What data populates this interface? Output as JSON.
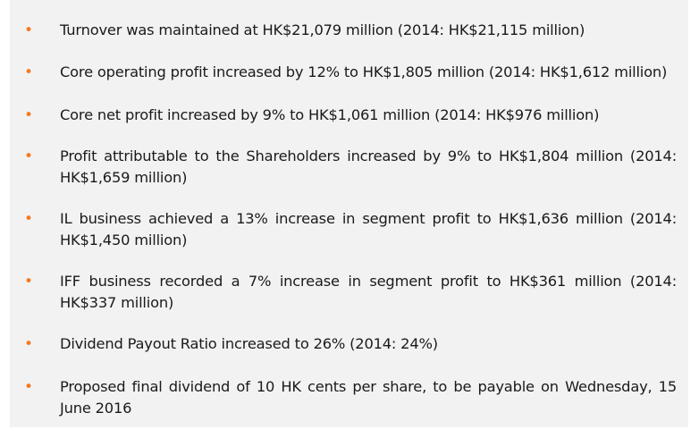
{
  "highlights": {
    "bullet_symbol": "•",
    "bullet_color": "#f47a20",
    "panel_color": "#f2f2f2",
    "items": [
      "Turnover was maintained at HK$21,079 million (2014: HK$21,115 million)",
      "Core operating profit increased by 12% to HK$1,805 million (2014: HK$1,612 million)",
      "Core net profit increased by 9% to HK$1,061 million (2014: HK$976 million)",
      "Profit attributable to the Shareholders increased by 9% to HK$1,804 million (2014: HK$1,659 million)",
      "IL business achieved a 13% increase in segment profit to HK$1,636 million (2014: HK$1,450 million)",
      "IFF business recorded a 7% increase in segment profit to HK$361 million (2014: HK$337 million)",
      "Dividend Payout Ratio increased to 26% (2014: 24%)",
      "Proposed final dividend of 10 HK cents per share, to be payable on Wednesday, 15 June 2016"
    ]
  }
}
